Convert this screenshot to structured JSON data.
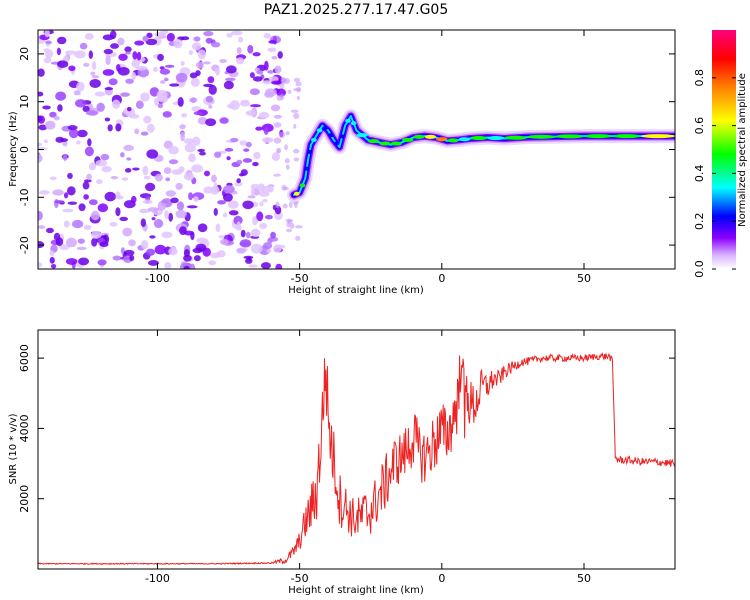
{
  "page": {
    "title": "PAZ1.2025.277.17.47.G05"
  },
  "chart_data": [
    {
      "id": "spectrogram",
      "type": "heatmap",
      "title": "PAZ1.2025.277.17.47.G05",
      "xlabel": "Height of straight line (km)",
      "ylabel": "Frequency (Hz)",
      "xlim": [
        -142,
        82
      ],
      "ylim": [
        -25,
        25
      ],
      "xticks": [
        -100,
        -50,
        0,
        50
      ],
      "xtick_labels": [
        "-100",
        "-50",
        "0",
        "50"
      ],
      "yticks": [
        20,
        10,
        0,
        -10,
        -20
      ],
      "ytick_labels": [
        "20",
        "10",
        "0",
        "-10",
        "-20"
      ],
      "noise_region_x": [
        -142,
        -56
      ],
      "signal_track": {
        "x": [
          -52,
          -50,
          -48,
          -47,
          -46,
          -44,
          -42,
          -40,
          -38,
          -36,
          -34,
          -32,
          -30,
          -26,
          -22,
          -18,
          -14,
          -10,
          -6,
          -2,
          2,
          6,
          10,
          16,
          22,
          30,
          40,
          50,
          60,
          70,
          82
        ],
        "freq": [
          -9.5,
          -9,
          -6,
          -2,
          1,
          3,
          5,
          4,
          2,
          0.5,
          5,
          7,
          4,
          2,
          1.5,
          1,
          1.5,
          2.5,
          2.8,
          2.5,
          1.8,
          2,
          2.3,
          2.5,
          2.3,
          2.6,
          2.7,
          2.8,
          2.8,
          2.8,
          2.8
        ],
        "amplitude": [
          0.65,
          0.5,
          0.3,
          0.3,
          0.35,
          0.35,
          0.3,
          0.3,
          0.25,
          0.3,
          0.45,
          0.35,
          0.4,
          0.5,
          0.55,
          0.5,
          0.5,
          0.6,
          0.7,
          0.8,
          0.6,
          0.45,
          0.55,
          0.45,
          0.5,
          0.55,
          0.5,
          0.6,
          0.6,
          0.75,
          0.75
        ]
      }
    },
    {
      "id": "colorbar",
      "type": "colorbar",
      "label": "Normalized spectral amplitude",
      "range": [
        0,
        1
      ],
      "ticks": [
        0.0,
        0.2,
        0.4,
        0.6,
        0.8
      ],
      "tick_labels": [
        "0.0",
        "0.2",
        "0.4",
        "0.6",
        "0.8"
      ],
      "colors": [
        "#ffffff",
        "#8a00ff",
        "#0000ff",
        "#00ffff",
        "#00ff00",
        "#ffff00",
        "#ff8000",
        "#ff0000",
        "#ff0080"
      ]
    },
    {
      "id": "snr",
      "type": "line",
      "xlabel": "Height of straight line (km)",
      "ylabel": "SNR (10 * v/v)",
      "xlim": [
        -142,
        82
      ],
      "ylim": [
        0,
        6800
      ],
      "xticks": [
        -100,
        -50,
        0,
        50
      ],
      "xtick_labels": [
        "-100",
        "-50",
        "0",
        "50"
      ],
      "yticks": [
        2000,
        4000,
        6000
      ],
      "ytick_labels": [
        "2000",
        "4000",
        "6000"
      ],
      "color": "#ee2222",
      "series": [
        {
          "name": "SNR",
          "x": [
            -142,
            -120,
            -100,
            -80,
            -60,
            -55,
            -52,
            -50,
            -48,
            -46,
            -44,
            -42,
            -41,
            -40,
            -39,
            -38,
            -37,
            -36,
            -34,
            -32,
            -30,
            -28,
            -26,
            -24,
            -22,
            -20,
            -18,
            -16,
            -14,
            -12,
            -10,
            -8,
            -6,
            -4,
            -2,
            0,
            2,
            4,
            6,
            7,
            8,
            9,
            10,
            12,
            14,
            16,
            18,
            20,
            22,
            24,
            26,
            28,
            30,
            35,
            40,
            45,
            50,
            55,
            59,
            60,
            61,
            62,
            65,
            70,
            75,
            82
          ],
          "y": [
            150,
            150,
            150,
            150,
            170,
            250,
            500,
            800,
            1300,
            1700,
            2200,
            4200,
            5800,
            4500,
            3600,
            3100,
            2600,
            2000,
            1800,
            1500,
            1400,
            1500,
            1600,
            1800,
            2100,
            2400,
            2800,
            3100,
            3200,
            3400,
            3800,
            3300,
            3200,
            3400,
            3700,
            3900,
            3800,
            4300,
            5000,
            6300,
            4200,
            5300,
            4600,
            4700,
            5200,
            5200,
            5400,
            5400,
            5600,
            5700,
            5800,
            5900,
            5900,
            6000,
            6000,
            6000,
            6000,
            6050,
            6050,
            5900,
            3200,
            3100,
            3100,
            3050,
            3050,
            3000
          ],
          "noise": [
            15,
            15,
            15,
            15,
            20,
            100,
            180,
            280,
            500,
            700,
            900,
            1200,
            1000,
            1100,
            1000,
            900,
            900,
            800,
            700,
            600,
            600,
            700,
            800,
            700,
            800,
            800,
            800,
            800,
            700,
            800,
            900,
            800,
            800,
            800,
            900,
            900,
            800,
            900,
            1000,
            600,
            1200,
            1000,
            800,
            600,
            500,
            400,
            300,
            250,
            200,
            180,
            150,
            130,
            120,
            100,
            100,
            100,
            100,
            100,
            100,
            100,
            100,
            110,
            110,
            110,
            110,
            110
          ]
        }
      ]
    }
  ]
}
